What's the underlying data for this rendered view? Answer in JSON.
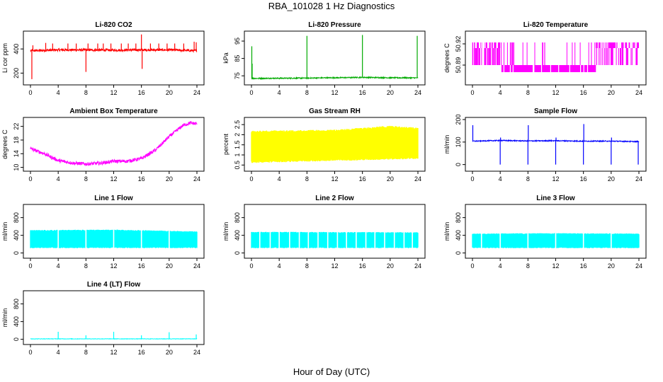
{
  "title": "RBA_101028  1 Hz Diagnostics",
  "xlabel": "Hour of Day (UTC)",
  "chart_data": [
    {
      "type": "line",
      "title": "Li-820 CO2",
      "ylabel": "Li cor ppm",
      "color": "#ff0000",
      "xlim": [
        0,
        24
      ],
      "ylim": [
        120,
        530
      ],
      "xticks": [
        "0",
        "4",
        "8",
        "12",
        "16",
        "20",
        "24"
      ],
      "yticks": [
        200,
        400
      ],
      "baseline": [
        [
          0,
          385
        ],
        [
          4,
          392
        ],
        [
          8,
          392
        ],
        [
          12,
          390
        ],
        [
          16,
          392
        ],
        [
          20,
          392
        ],
        [
          24,
          385
        ]
      ],
      "noise": 10,
      "spikes": [
        [
          0.2,
          150
        ],
        [
          0.35,
          430
        ],
        [
          2.2,
          450
        ],
        [
          3.2,
          445
        ],
        [
          5.4,
          445
        ],
        [
          6.6,
          445
        ],
        [
          8.0,
          210
        ],
        [
          8.3,
          445
        ],
        [
          9.7,
          445
        ],
        [
          10.5,
          445
        ],
        [
          11.6,
          445
        ],
        [
          13.1,
          445
        ],
        [
          14.1,
          445
        ],
        [
          15.2,
          445
        ],
        [
          16.0,
          520
        ],
        [
          16.1,
          235
        ],
        [
          17.3,
          445
        ],
        [
          18.5,
          445
        ],
        [
          19.7,
          445
        ],
        [
          20.8,
          445
        ],
        [
          22.1,
          445
        ],
        [
          23.6,
          460
        ],
        [
          23.9,
          455
        ]
      ]
    },
    {
      "type": "line",
      "title": "Li-820 Pressure",
      "ylabel": "kPa",
      "color": "#00aa00",
      "xlim": [
        0,
        24
      ],
      "ylim": [
        71,
        99.5
      ],
      "xticks": [
        "0",
        "4",
        "8",
        "12",
        "16",
        "20",
        "24"
      ],
      "yticks": [
        75,
        85,
        95
      ],
      "baseline": [
        [
          0,
          73.5
        ],
        [
          4,
          73.6
        ],
        [
          8,
          73.7
        ],
        [
          12,
          73.9
        ],
        [
          16,
          74.1
        ],
        [
          20,
          73.9
        ],
        [
          24,
          73.8
        ]
      ],
      "noise": 0.3,
      "spikes": [
        [
          0.05,
          92
        ],
        [
          0.1,
          82
        ],
        [
          8.0,
          98
        ],
        [
          16.0,
          98.5
        ],
        [
          23.9,
          98
        ]
      ]
    },
    {
      "type": "line",
      "title": "Li-820 Temperature",
      "ylabel": "degrees C",
      "color": "#ff00ff",
      "xlim": [
        0,
        24
      ],
      "ylim": [
        50.865,
        50.935
      ],
      "xticks": [
        "0",
        "4",
        "8",
        "12",
        "16",
        "20",
        "24"
      ],
      "yticks": [
        50.89,
        50.92
      ],
      "levels": [
        50.914,
        50.922,
        50.88,
        50.89
      ],
      "segments": [
        [
          0,
          4,
          "hi"
        ],
        [
          4,
          17.8,
          "lo"
        ],
        [
          17.8,
          24,
          "hi"
        ]
      ]
    },
    {
      "type": "line",
      "title": "Ambient Box Temperature",
      "ylabel": "degrees C",
      "color": "#ff00ff",
      "xlim": [
        0,
        24
      ],
      "ylim": [
        9.5,
        24
      ],
      "xticks": [
        "0",
        "4",
        "8",
        "12",
        "16",
        "20",
        "24"
      ],
      "yticks": [
        10,
        14,
        18,
        22
      ],
      "baseline": [
        [
          0,
          15.5
        ],
        [
          2,
          14
        ],
        [
          4,
          12
        ],
        [
          6,
          11.3
        ],
        [
          8,
          11
        ],
        [
          10,
          11.2
        ],
        [
          12,
          11.8
        ],
        [
          14,
          11.8
        ],
        [
          16,
          12.6
        ],
        [
          18,
          15
        ],
        [
          20,
          19
        ],
        [
          22,
          22.3
        ],
        [
          23,
          23
        ],
        [
          24,
          22.8
        ]
      ],
      "noise": 0.5,
      "spikes": []
    },
    {
      "type": "line",
      "title": "Gas Stream RH",
      "ylabel": "percent",
      "color": "#ffff00",
      "xlim": [
        0,
        24
      ],
      "ylim": [
        0.3,
        2.75
      ],
      "xticks": [
        "0",
        "4",
        "8",
        "12",
        "16",
        "20",
        "24"
      ],
      "yticks": [
        0.5,
        1.0,
        1.5,
        2.0,
        2.5
      ],
      "band_low": [
        [
          0,
          0.6
        ],
        [
          24,
          0.8
        ]
      ],
      "band_high": [
        [
          0,
          2.2
        ],
        [
          12,
          2.25
        ],
        [
          20,
          2.45
        ],
        [
          24,
          2.35
        ]
      ]
    },
    {
      "type": "line",
      "title": "Sample Flow",
      "ylabel": "ml/min",
      "color": "#0000ff",
      "xlim": [
        0,
        24
      ],
      "ylim": [
        -20,
        200
      ],
      "xticks": [
        "0",
        "4",
        "8",
        "12",
        "16",
        "20",
        "24"
      ],
      "yticks": [
        0,
        100,
        200
      ],
      "baseline": [
        [
          0,
          104
        ],
        [
          4,
          107
        ],
        [
          8,
          105
        ],
        [
          12,
          106
        ],
        [
          16,
          104
        ],
        [
          20,
          104
        ],
        [
          24,
          102
        ]
      ],
      "noise": 2,
      "spikes": [
        [
          0.05,
          175
        ],
        [
          4.0,
          0
        ],
        [
          4.05,
          120
        ],
        [
          8.0,
          0
        ],
        [
          8.05,
          175
        ],
        [
          12.0,
          0
        ],
        [
          12.05,
          120
        ],
        [
          16.0,
          0
        ],
        [
          16.05,
          180
        ],
        [
          20.0,
          0
        ],
        [
          20.05,
          120
        ],
        [
          23.9,
          0
        ]
      ]
    },
    {
      "type": "line",
      "title": "Line 1 Flow",
      "ylabel": "ml/min",
      "color": "#00ffff",
      "xlim": [
        0,
        24
      ],
      "ylim": [
        -70,
        1050
      ],
      "xticks": [
        "0",
        "4",
        "8",
        "12",
        "16",
        "20",
        "24"
      ],
      "yticks": [
        0,
        400,
        800
      ],
      "band_low": [
        [
          0,
          110
        ],
        [
          24,
          110
        ]
      ],
      "band_high": [
        [
          0,
          520
        ],
        [
          12,
          530
        ],
        [
          24,
          490
        ]
      ],
      "gaps": [
        4,
        8,
        12,
        16,
        20
      ]
    },
    {
      "type": "line",
      "title": "Line 2 Flow",
      "ylabel": "ml/min",
      "color": "#00ffff",
      "xlim": [
        0,
        24
      ],
      "ylim": [
        -70,
        1050
      ],
      "xticks": [
        "0",
        "4",
        "8",
        "12",
        "16",
        "20",
        "24"
      ],
      "yticks": [
        0,
        400,
        800
      ],
      "band_low": [
        [
          0,
          110
        ],
        [
          24,
          110
        ]
      ],
      "band_high": [
        [
          0,
          480
        ],
        [
          24,
          470
        ]
      ],
      "gaps": [
        1.2,
        2.7,
        4.0,
        5.5,
        6.9,
        8.2,
        9.6,
        11.0,
        12.4,
        13.7,
        15.1,
        16.5,
        17.8,
        19.2,
        20.6,
        22.0,
        23.2
      ]
    },
    {
      "type": "line",
      "title": "Line 3 Flow",
      "ylabel": "ml/min",
      "color": "#00ffff",
      "xlim": [
        0,
        24
      ],
      "ylim": [
        -70,
        1050
      ],
      "xticks": [
        "0",
        "4",
        "8",
        "12",
        "16",
        "20",
        "24"
      ],
      "yticks": [
        0,
        400,
        800
      ],
      "band_low": [
        [
          0,
          110
        ],
        [
          24,
          110
        ]
      ],
      "band_high": [
        [
          0,
          440
        ],
        [
          12,
          450
        ],
        [
          24,
          440
        ]
      ],
      "gaps": [
        1.3,
        4.0,
        8.0,
        12.0,
        16.0,
        20.0
      ]
    },
    {
      "type": "line",
      "title": "Line 4 (LT) Flow",
      "ylabel": "ml/min",
      "color": "#00ffff",
      "xlim": [
        0,
        24
      ],
      "ylim": [
        -70,
        1050
      ],
      "xticks": [
        "0",
        "4",
        "8",
        "12",
        "16",
        "20",
        "24"
      ],
      "yticks": [
        0,
        400,
        800
      ],
      "baseline": [
        [
          0,
          10
        ],
        [
          24,
          10
        ]
      ],
      "noise": 5,
      "spikes": [
        [
          4.0,
          170
        ],
        [
          8.0,
          90
        ],
        [
          12.0,
          170
        ],
        [
          16.0,
          90
        ],
        [
          20.0,
          160
        ],
        [
          23.9,
          110
        ]
      ]
    }
  ]
}
